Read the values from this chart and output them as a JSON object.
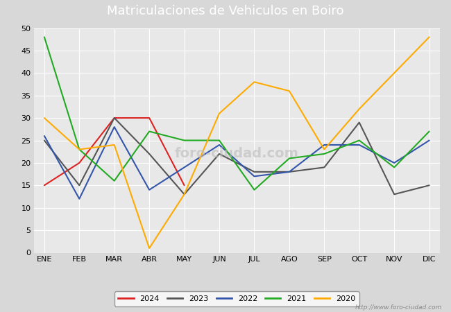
{
  "title": "Matriculaciones de Vehiculos en Boiro",
  "title_bg_color": "#4a7cc7",
  "title_text_color": "#ffffff",
  "months": [
    "ENE",
    "FEB",
    "MAR",
    "ABR",
    "MAY",
    "JUN",
    "JUL",
    "AGO",
    "SEP",
    "OCT",
    "NOV",
    "DIC"
  ],
  "ylim": [
    0,
    50
  ],
  "yticks": [
    0,
    5,
    10,
    15,
    20,
    25,
    30,
    35,
    40,
    45,
    50
  ],
  "series": {
    "2024": {
      "color": "#dd2222",
      "data": [
        15,
        20,
        30,
        30,
        15,
        null,
        null,
        null,
        null,
        null,
        null,
        null
      ]
    },
    "2023": {
      "color": "#555555",
      "data": [
        25,
        15,
        30,
        22,
        13,
        22,
        18,
        18,
        19,
        29,
        13,
        15
      ]
    },
    "2022": {
      "color": "#3355aa",
      "data": [
        26,
        12,
        28,
        14,
        19,
        24,
        17,
        18,
        24,
        24,
        20,
        25
      ]
    },
    "2021": {
      "color": "#22aa22",
      "data": [
        48,
        23,
        16,
        27,
        25,
        25,
        14,
        21,
        22,
        25,
        19,
        27
      ]
    },
    "2020": {
      "color": "#ffaa00",
      "data": [
        30,
        23,
        24,
        1,
        13,
        31,
        38,
        36,
        23,
        32,
        40,
        48
      ]
    }
  },
  "legend_order": [
    "2024",
    "2023",
    "2022",
    "2021",
    "2020"
  ],
  "bg_color": "#d8d8d8",
  "plot_bg_color": "#e8e8e8",
  "grid_color": "#ffffff",
  "url_text": "http://www.foro-ciudad.com",
  "font_size_title": 13,
  "font_size_ticks": 8,
  "font_size_legend": 8,
  "linewidth": 1.5
}
